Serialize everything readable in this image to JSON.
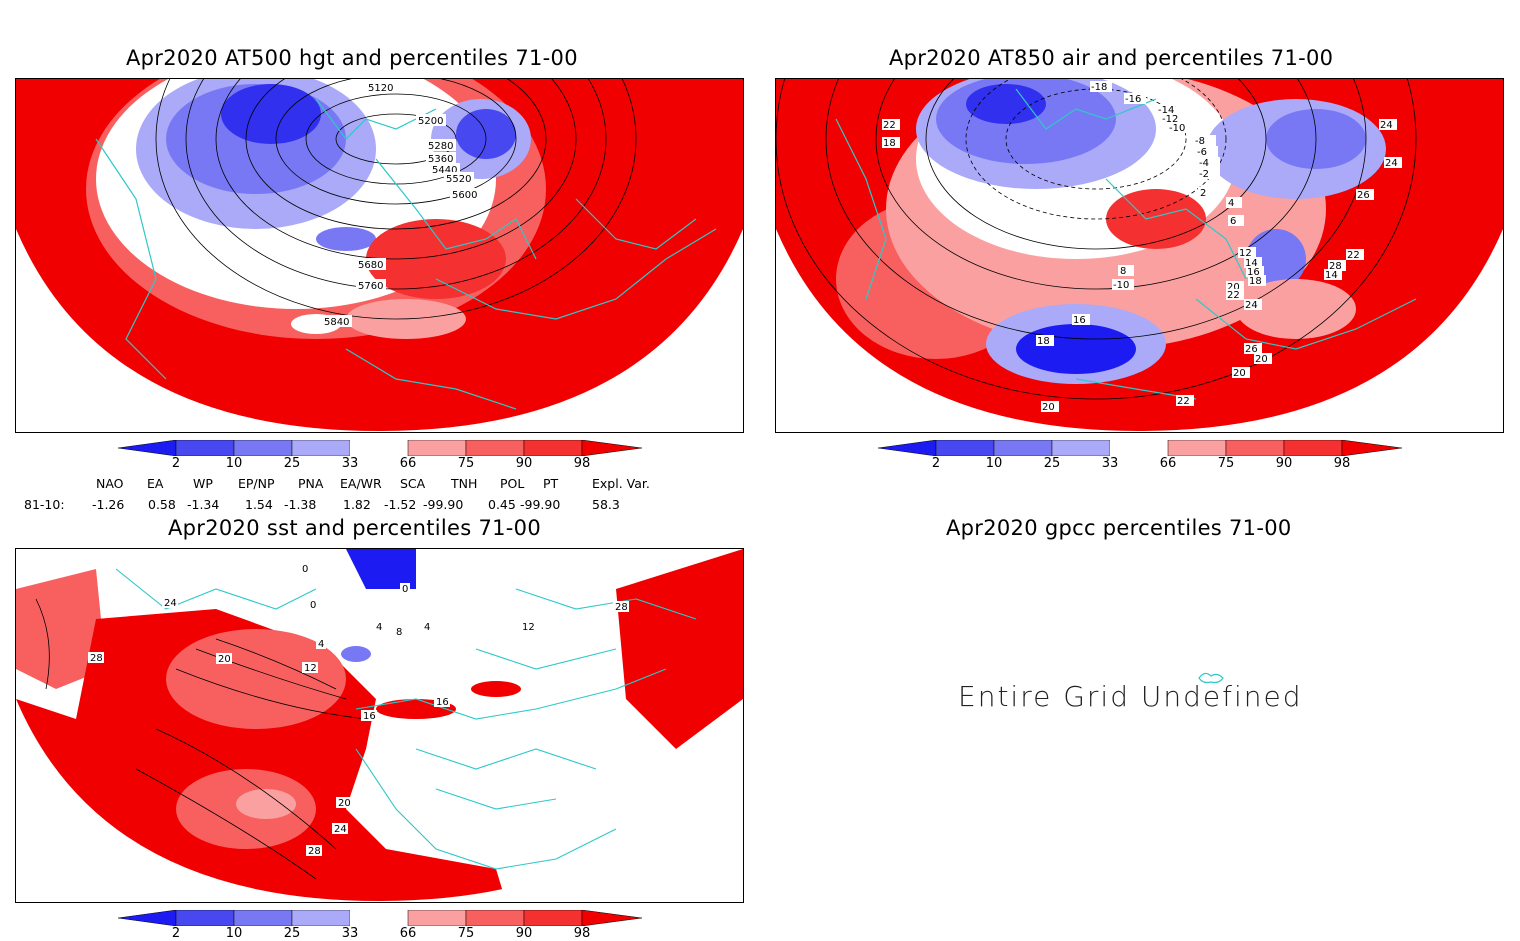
{
  "panels": {
    "p1": {
      "title": "Apr2020 AT500 hgt and percentiles 71-00",
      "contour_labels": [
        "5120",
        "5200",
        "5280",
        "5360",
        "5440",
        "5520",
        "5600",
        "5680",
        "5760",
        "5840"
      ]
    },
    "p2": {
      "title": "Apr2020 AT850 air and percentiles 71-00",
      "contour_labels": [
        "-18",
        "-16",
        "-14",
        "-12",
        "-10",
        "-8",
        "-6",
        "-4",
        "-2",
        "2",
        "4",
        "6",
        "8",
        "-10",
        "12",
        "14",
        "16",
        "18",
        "20",
        "22",
        "24",
        "26",
        "28",
        "14",
        "16",
        "18",
        "20",
        "22",
        "20",
        "22",
        "24",
        "26",
        "24",
        "22",
        "20",
        "18"
      ]
    },
    "p3": {
      "title": "Apr2020 sst and percentiles 71-00",
      "contour_labels": [
        "0",
        "0",
        "0",
        "4",
        "4",
        "8",
        "4",
        "12",
        "20",
        "16",
        "16",
        "24",
        "28",
        "20",
        "24",
        "28",
        "12",
        "28"
      ]
    },
    "p4": {
      "title": "Apr2020 gpcc percentiles 71-00",
      "message": "Entire Grid Undefined"
    }
  },
  "colorbar": {
    "labels": [
      "2",
      "10",
      "25",
      "33",
      "66",
      "75",
      "90",
      "98"
    ],
    "colors": [
      "#1c1cf2",
      "#4848f0",
      "#7878f4",
      "#aaaaf8",
      "#ffffff",
      "#fba0a0",
      "#f86060",
      "#f43030",
      "#f00000"
    ]
  },
  "indices": {
    "headers": [
      "NAO",
      "EA",
      "WP",
      "EP/NP",
      "PNA",
      "EA/WR",
      "SCA",
      "TNH",
      "POL",
      "PT",
      "Expl. Var."
    ],
    "row_label": "81-10:",
    "values": [
      "-1.26",
      "0.58",
      "-1.34",
      "1.54",
      "-1.38",
      "1.82",
      "-1.52",
      "-99.90",
      "0.45",
      "-99.90",
      "58.3"
    ]
  },
  "colors": {
    "coast": "#2ec8c8",
    "hot": "#ff0000",
    "cold": "#1010e0"
  }
}
